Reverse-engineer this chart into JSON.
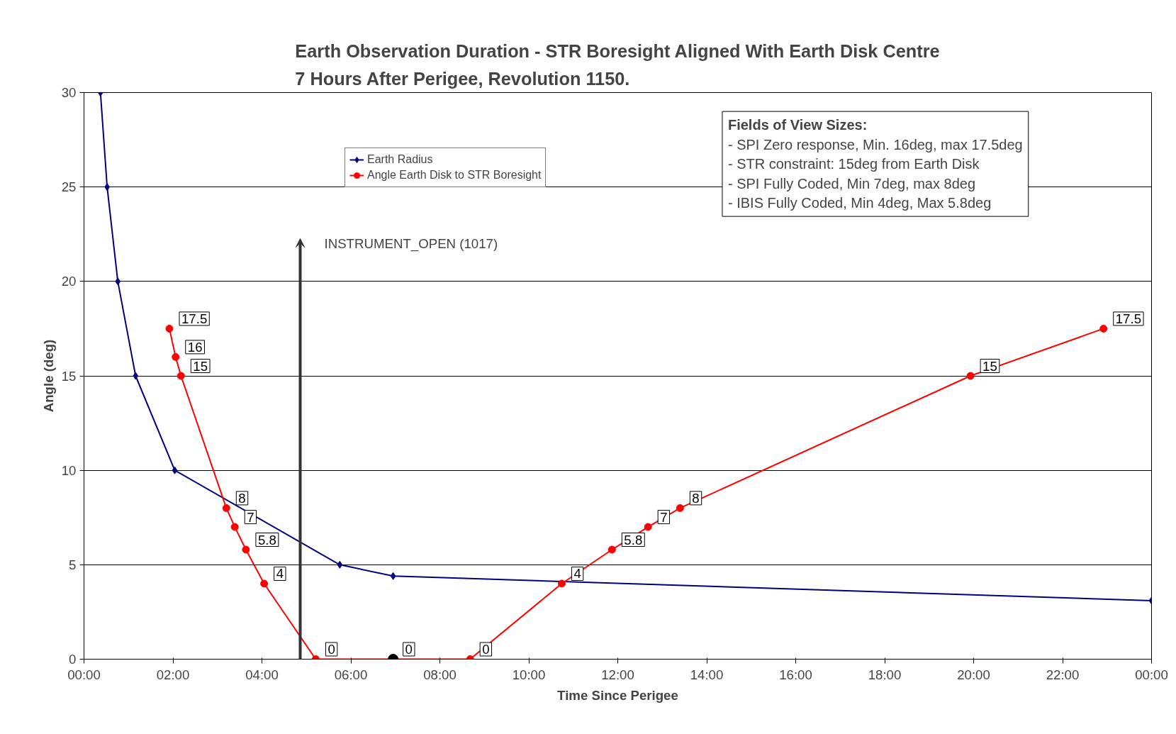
{
  "chart_data": {
    "type": "line",
    "title": "Earth Observation Duration - STR Boresight Aligned With Earth Disk Centre 7 Hours After Perigee, Revolution 1150.",
    "xlabel": "Time Since Perigee",
    "ylabel": "Angle (deg)",
    "xlim": [
      0,
      24
    ],
    "ylim": [
      0,
      30
    ],
    "xticks": [
      {
        "value": 0,
        "label": "00:00"
      },
      {
        "value": 2,
        "label": "02:00"
      },
      {
        "value": 4,
        "label": "04:00"
      },
      {
        "value": 6,
        "label": "06:00"
      },
      {
        "value": 8,
        "label": "08:00"
      },
      {
        "value": 10,
        "label": "10:00"
      },
      {
        "value": 12,
        "label": "12:00"
      },
      {
        "value": 14,
        "label": "14:00"
      },
      {
        "value": 16,
        "label": "16:00"
      },
      {
        "value": 18,
        "label": "18:00"
      },
      {
        "value": 20,
        "label": "20:00"
      },
      {
        "value": 22,
        "label": "22:00"
      },
      {
        "value": 24,
        "label": "00:00"
      }
    ],
    "yticks": [
      0,
      5,
      10,
      15,
      20,
      25,
      30
    ],
    "grid": "y",
    "legend": "top",
    "series": [
      {
        "name": "Earth Radius",
        "color": "#000080",
        "marker": "diamond",
        "x": [
          0.37,
          0.52,
          0.76,
          1.16,
          2.04,
          5.75,
          6.95,
          24
        ],
        "values": [
          30,
          25,
          20,
          15,
          10,
          5,
          4.4,
          3.1
        ]
      },
      {
        "name": "Angle Earth Disk to STR Boresight",
        "color": "#ff0000",
        "marker": "circle",
        "x": [
          1.92,
          2.06,
          2.18,
          3.2,
          3.39,
          3.64,
          4.05,
          5.21,
          8.68,
          10.74,
          11.87,
          12.68,
          13.4,
          19.93,
          22.92
        ],
        "values": [
          17.5,
          16,
          15,
          8,
          7,
          5.8,
          4,
          0,
          0,
          4,
          5.8,
          7,
          8,
          15,
          17.5
        ],
        "value_labels": [
          "17.5",
          "16",
          "15",
          "8",
          "7",
          "5.8",
          "4",
          "0",
          "0",
          "4",
          "5.8",
          "7",
          "8",
          "15",
          "17.5"
        ]
      },
      {
        "type": "scatter",
        "color": "#000000",
        "marker": "circle",
        "x": [
          6.95
        ],
        "values": [
          0
        ],
        "value_labels": [
          "0"
        ]
      }
    ],
    "annotations": [
      "INSTRUMENT_OPEN (1017)",
      "Fields of View Sizes:",
      "- SPI Zero response, Min. 16deg, max 17.5deg",
      "- STR constraint: 15deg from Earth Disk",
      "- SPI Fully Coded, Min 7deg, max 8deg",
      "- IBIS Fully Coded, Min 4deg, Max 5.8deg"
    ]
  }
}
